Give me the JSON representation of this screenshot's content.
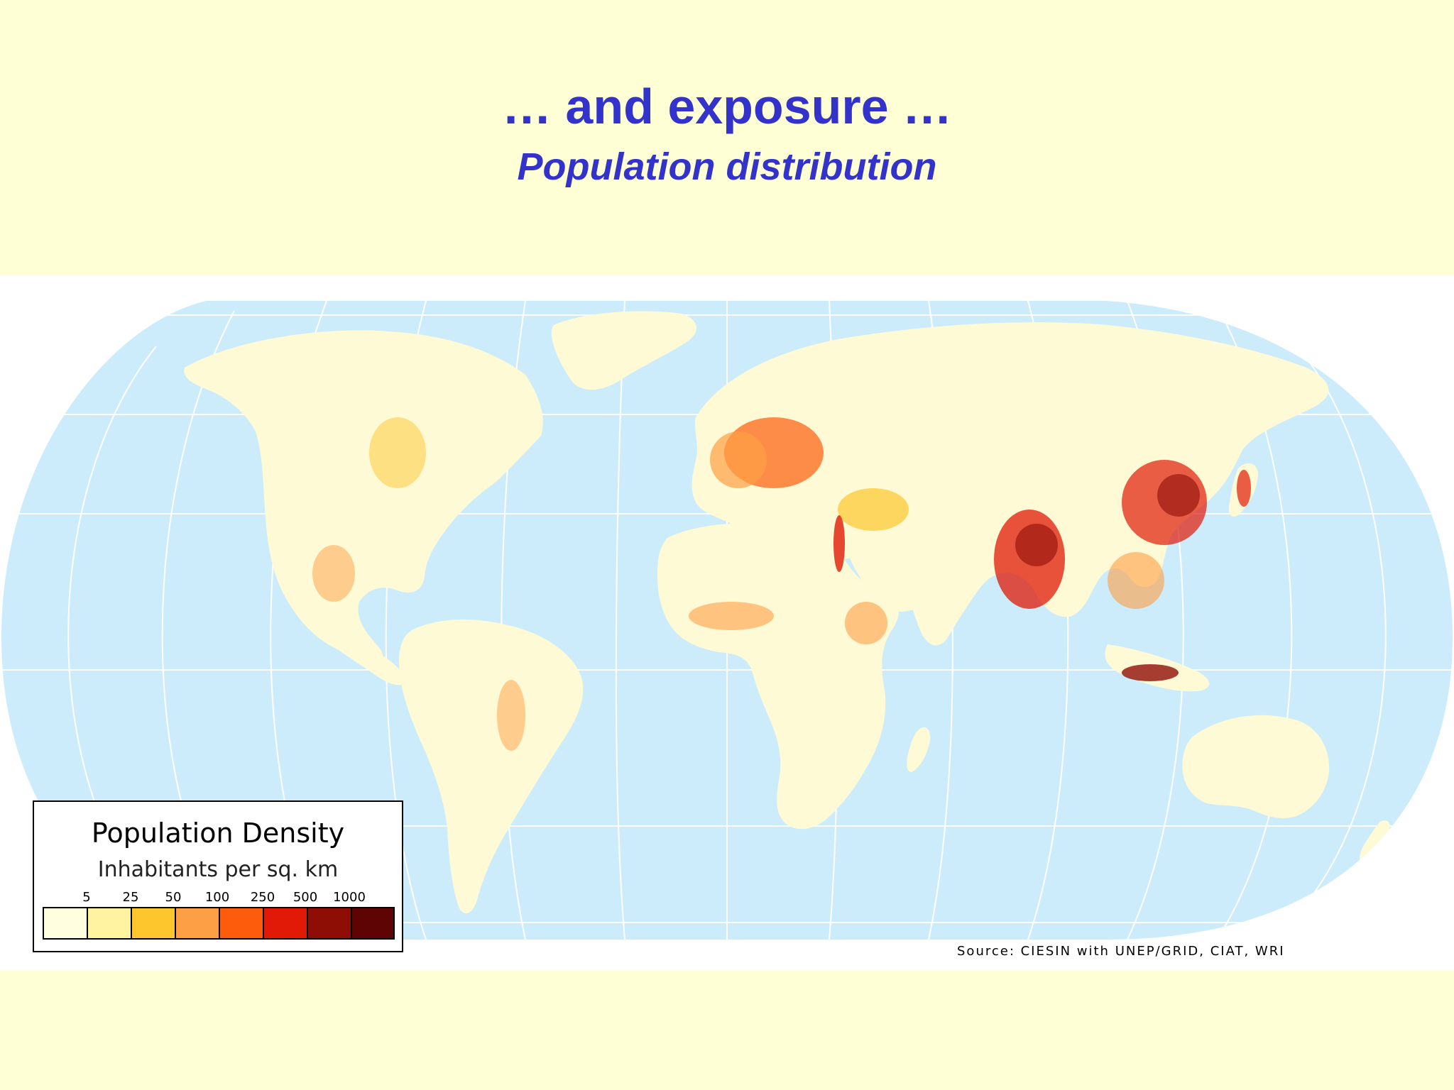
{
  "slide": {
    "title": "… and exposure …",
    "subtitle": "Population distribution"
  },
  "map": {
    "ocean_color": "#ccecfb",
    "land_color": "#fffad6",
    "graticule_color": "#ffffff",
    "source": "Source: CIESIN with UNEP/GRID, CIAT, WRI"
  },
  "legend": {
    "title": "Population Density",
    "subtitle": "Inhabitants per sq. km",
    "ticks": [
      "5",
      "25",
      "50",
      "100",
      "250",
      "500",
      "1000"
    ],
    "colors": [
      "#ffffe0",
      "#fff2a0",
      "#fcc62c",
      "#fd9f45",
      "#fc5c0c",
      "#e01a06",
      "#8e0e06",
      "#5e0404"
    ]
  }
}
